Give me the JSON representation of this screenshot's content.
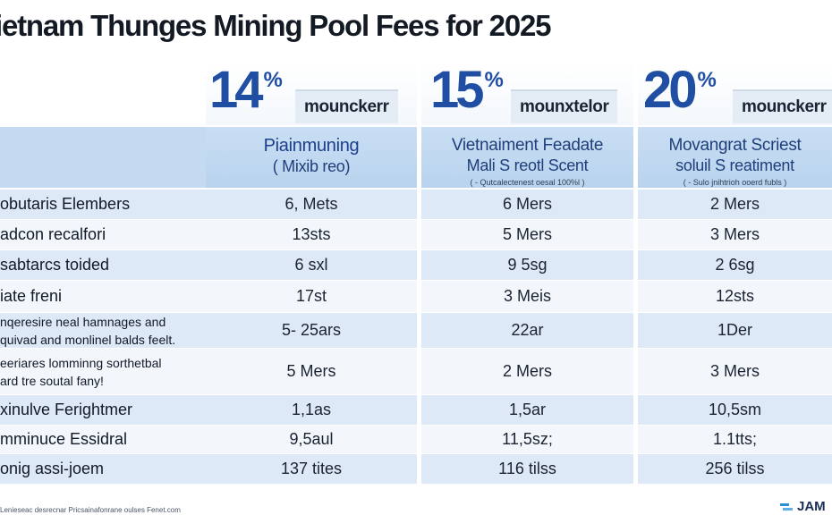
{
  "title": "ietnam Thunges Mining Pool Fees for 2025",
  "plans": [
    {
      "percent": "14",
      "percent_sign": "%",
      "unit": "mounckerr"
    },
    {
      "percent": "15",
      "percent_sign": "%",
      "unit": "mounxtelor"
    },
    {
      "percent": "20",
      "percent_sign": "%",
      "unit": "mounckerr"
    }
  ],
  "columns": [
    {
      "line1": "Piainmuning",
      "line2": "( Mixib reo)",
      "line3": ""
    },
    {
      "line1": "Vietnaiment Feadate",
      "line2": "Mali S reotl Scent",
      "line3": "( - Qutcalectenest oesal 100%l )"
    },
    {
      "line1": "Movangrat Scriest",
      "line2": "soluil S reatiment",
      "line3": "( - Sulo jnihtrioh ooerd fubls )"
    }
  ],
  "rows": [
    {
      "label": [
        "obutaris Elembers"
      ],
      "values": [
        "6, Mets",
        "6 Mers",
        "2 Mers"
      ]
    },
    {
      "label": [
        "adcon recalfori"
      ],
      "values": [
        "13sts",
        "5 Mers",
        "3 Mers"
      ]
    },
    {
      "label": [
        "sabtarcs toided"
      ],
      "values": [
        "6 sxl",
        "9 5sg",
        "2 6sg"
      ]
    },
    {
      "label": [
        "iate freni"
      ],
      "values": [
        "17st",
        "3 Meis",
        "12sts"
      ]
    },
    {
      "label": [
        "nqeresire neal hamnages and",
        "quivad and monlinel balds feelt."
      ],
      "values": [
        "5- 25ars",
        "22ar",
        "1Der"
      ]
    },
    {
      "label": [
        "eeriares lomminng sorthetbal",
        "ard tre soutal fany!"
      ],
      "values": [
        "5 Mers",
        "2 Mers",
        "3 Mers"
      ]
    },
    {
      "label": [
        "xinulve Ferightmer"
      ],
      "values": [
        "1,1as",
        "1,5ar",
        "10,5sm"
      ]
    },
    {
      "label": [
        "mminuce Essidral"
      ],
      "values": [
        "9,5aul",
        "11,5sz;",
        "1.1tts;"
      ]
    },
    {
      "label": [
        "onig assi-joem"
      ],
      "values": [
        "137 tites",
        "116 tilss",
        "256 tilss"
      ]
    }
  ],
  "footnote": "Lenieseac desrecnar Pricsainafonrane oulses Fenet.com",
  "logo_text": "JAM",
  "colors": {
    "accent": "#1f4ea3",
    "header_bg": "#bcd5ee",
    "row_alt": "#e8f1fa",
    "row_base": "#f7fafd"
  }
}
